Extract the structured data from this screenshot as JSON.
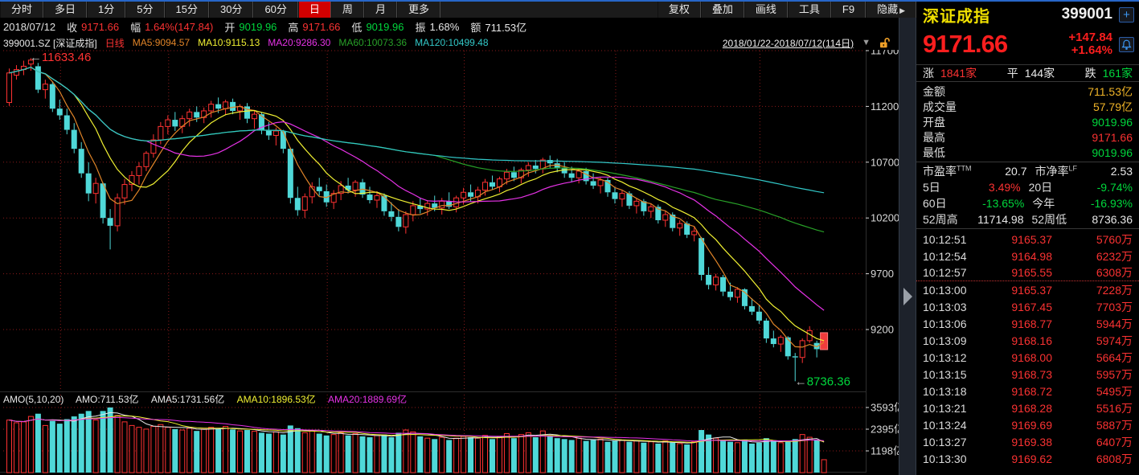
{
  "toolbar": {
    "tabs": [
      "分时",
      "多日",
      "1分",
      "5分",
      "15分",
      "30分",
      "60分",
      "日",
      "周",
      "月",
      "更多"
    ],
    "active_tab": "日",
    "tools": [
      "复权",
      "叠加",
      "画线",
      "工具",
      "F9",
      "隐藏"
    ],
    "hide_arrow": "▶"
  },
  "info_bar": {
    "date": "2018/07/12",
    "close_label": "收",
    "close": "9171.66",
    "chg_label": "幅",
    "chg": "1.64%(147.84)",
    "open_label": "开",
    "open": "9019.96",
    "high_label": "高",
    "high": "9171.66",
    "low_label": "低",
    "low": "9019.96",
    "amp_label": "振",
    "amplitude": "1.68%",
    "amount_label": "额",
    "amount": "711.53亿"
  },
  "legend": {
    "symbol": "399001.SZ [深证成指]",
    "period": "日线",
    "ma5": "MA5:9094.57",
    "ma10": "MA10:9115.13",
    "ma20": "MA20:9286.30",
    "ma60": "MA60:10073.36",
    "ma120": "MA120:10499.48",
    "range": "2018/01/22-2018/07/12(114日)",
    "caret": "▼"
  },
  "amo_legend": {
    "params": "AMO(5,10,20)",
    "amo": "AMO:711.53亿",
    "ama5": "AMA5:1731.56亿",
    "ama10": "AMA10:1896.53亿",
    "ama20": "AMA20:1889.69亿"
  },
  "chart_data": {
    "type": "candlestick+volume",
    "title": "深证成指 399001 日线 2018/01/22-2018/07/12(114日)",
    "y_ticks": [
      11700,
      11200,
      10700,
      10200,
      9700,
      9200
    ],
    "amo_ticks": [
      3593,
      2395,
      1198
    ],
    "amo_tick_suffix": "亿",
    "month_start_indices": [
      8,
      23,
      45,
      64,
      85,
      105
    ],
    "annotations": {
      "peak": "11633.46",
      "trough": "8736.36",
      "arrow": "←"
    },
    "colors": {
      "up": "#ff3232",
      "down": "#4fd8d8",
      "last": "#f03c3c",
      "grid": "#8b1a1a",
      "axis_text": "#d8d8d8",
      "ma5": "#e08428",
      "ma10": "#f0f032",
      "ma20": "#e632e6",
      "ma60": "#28a028",
      "ma120": "#32c8c8",
      "ama5": "#e8e8e8",
      "ama10": "#f0f032",
      "ama20": "#e632e6",
      "peak_text": "#ff3232",
      "trough_text": "#00d73c",
      "arrow_text": "#b4b4b4"
    },
    "candles": [
      [
        11235,
        11540,
        11205,
        11500
      ],
      [
        11480,
        11570,
        11440,
        11530
      ],
      [
        11530,
        11610,
        11480,
        11560
      ],
      [
        11580,
        11633.46,
        11520,
        11615
      ],
      [
        11560,
        11590,
        11320,
        11350
      ],
      [
        11350,
        11440,
        11270,
        11400
      ],
      [
        11400,
        11420,
        11150,
        11180
      ],
      [
        11180,
        11260,
        11080,
        11120
      ],
      [
        11120,
        11180,
        10950,
        10990
      ],
      [
        10990,
        11050,
        10780,
        10820
      ],
      [
        10820,
        10880,
        10560,
        10600
      ],
      [
        10600,
        10700,
        10350,
        10420
      ],
      [
        10420,
        10560,
        10330,
        10510
      ],
      [
        10510,
        10520,
        10150,
        10200
      ],
      [
        10200,
        10280,
        9918,
        10130
      ],
      [
        10130,
        10420,
        10080,
        10380
      ],
      [
        10380,
        10550,
        10320,
        10500
      ],
      [
        10500,
        10620,
        10440,
        10580
      ],
      [
        10580,
        10700,
        10500,
        10660
      ],
      [
        10660,
        10800,
        10620,
        10780
      ],
      [
        10780,
        10950,
        10740,
        10900
      ],
      [
        10900,
        11060,
        10860,
        11020
      ],
      [
        11020,
        11120,
        10950,
        11080
      ],
      [
        11080,
        11150,
        10980,
        11020
      ],
      [
        11020,
        11120,
        10960,
        11090
      ],
      [
        11090,
        11180,
        11020,
        11150
      ],
      [
        11150,
        11200,
        11060,
        11100
      ],
      [
        11100,
        11190,
        11050,
        11160
      ],
      [
        11160,
        11250,
        11100,
        11220
      ],
      [
        11220,
        11280,
        11140,
        11180
      ],
      [
        11180,
        11260,
        11120,
        11240
      ],
      [
        11240,
        11270,
        11130,
        11160
      ],
      [
        11160,
        11220,
        11080,
        11200
      ],
      [
        11200,
        11230,
        11050,
        11090
      ],
      [
        11090,
        11160,
        11000,
        11130
      ],
      [
        11130,
        11150,
        10950,
        10990
      ],
      [
        10990,
        11060,
        10900,
        10940
      ],
      [
        10940,
        11010,
        10850,
        10980
      ],
      [
        10980,
        10990,
        10780,
        10820
      ],
      [
        10820,
        10830,
        10330,
        10380
      ],
      [
        10380,
        10480,
        10220,
        10270
      ],
      [
        10270,
        10420,
        10200,
        10390
      ],
      [
        10390,
        10520,
        10330,
        10480
      ],
      [
        10480,
        10560,
        10400,
        10440
      ],
      [
        10440,
        10500,
        10300,
        10340
      ],
      [
        10340,
        10450,
        10280,
        10420
      ],
      [
        10420,
        10530,
        10360,
        10490
      ],
      [
        10490,
        10560,
        10420,
        10450
      ],
      [
        10450,
        10540,
        10390,
        10520
      ],
      [
        10520,
        10550,
        10380,
        10410
      ],
      [
        10410,
        10480,
        10330,
        10360
      ],
      [
        10360,
        10440,
        10290,
        10400
      ],
      [
        10400,
        10420,
        10220,
        10260
      ],
      [
        10260,
        10340,
        10170,
        10210
      ],
      [
        10210,
        10280,
        10080,
        10120
      ],
      [
        10120,
        10260,
        10060,
        10230
      ],
      [
        10230,
        10350,
        10170,
        10310
      ],
      [
        10310,
        10380,
        10240,
        10280
      ],
      [
        10280,
        10360,
        10220,
        10330
      ],
      [
        10330,
        10400,
        10260,
        10290
      ],
      [
        10290,
        10380,
        10230,
        10350
      ],
      [
        10350,
        10430,
        10280,
        10300
      ],
      [
        10300,
        10400,
        10250,
        10380
      ],
      [
        10380,
        10470,
        10320,
        10430
      ],
      [
        10430,
        10500,
        10350,
        10390
      ],
      [
        10390,
        10480,
        10330,
        10450
      ],
      [
        10450,
        10550,
        10400,
        10520
      ],
      [
        10520,
        10580,
        10450,
        10480
      ],
      [
        10480,
        10570,
        10430,
        10550
      ],
      [
        10550,
        10640,
        10500,
        10610
      ],
      [
        10610,
        10660,
        10530,
        10560
      ],
      [
        10560,
        10650,
        10510,
        10630
      ],
      [
        10630,
        10700,
        10570,
        10670
      ],
      [
        10670,
        10720,
        10600,
        10640
      ],
      [
        10640,
        10740,
        10600,
        10720
      ],
      [
        10720,
        10760,
        10650,
        10690
      ],
      [
        10690,
        10730,
        10610,
        10650
      ],
      [
        10650,
        10700,
        10560,
        10600
      ],
      [
        10600,
        10660,
        10520,
        10560
      ],
      [
        10560,
        10640,
        10510,
        10620
      ],
      [
        10620,
        10650,
        10500,
        10530
      ],
      [
        10530,
        10600,
        10460,
        10490
      ],
      [
        10490,
        10560,
        10420,
        10540
      ],
      [
        10540,
        10560,
        10390,
        10430
      ],
      [
        10430,
        10480,
        10330,
        10370
      ],
      [
        10370,
        10450,
        10300,
        10420
      ],
      [
        10420,
        10440,
        10280,
        10310
      ],
      [
        10310,
        10380,
        10240,
        10350
      ],
      [
        10350,
        10370,
        10220,
        10260
      ],
      [
        10260,
        10330,
        10200,
        10300
      ],
      [
        10300,
        10320,
        10150,
        10180
      ],
      [
        10180,
        10260,
        10120,
        10230
      ],
      [
        10230,
        10250,
        10080,
        10110
      ],
      [
        10110,
        10180,
        10040,
        10150
      ],
      [
        10150,
        10170,
        10020,
        10050
      ],
      [
        10050,
        10120,
        9990,
        10080
      ],
      [
        10020,
        10030,
        9640,
        9690
      ],
      [
        9690,
        9760,
        9560,
        9600
      ],
      [
        9600,
        9700,
        9550,
        9670
      ],
      [
        9670,
        9690,
        9500,
        9540
      ],
      [
        9540,
        9620,
        9460,
        9490
      ],
      [
        9490,
        9580,
        9440,
        9560
      ],
      [
        9560,
        9570,
        9380,
        9410
      ],
      [
        9410,
        9480,
        9330,
        9360
      ],
      [
        9360,
        9420,
        9250,
        9280
      ],
      [
        9280,
        9300,
        9080,
        9120
      ],
      [
        9120,
        9190,
        9040,
        9070
      ],
      [
        9070,
        9150,
        9000,
        9130
      ],
      [
        9130,
        9140,
        8930,
        8960
      ],
      [
        8960,
        8990,
        8736.36,
        8950
      ],
      [
        8950,
        9120,
        8900,
        9100
      ],
      [
        9100,
        9230,
        9080,
        9190
      ],
      [
        9080,
        9100,
        8950,
        9024
      ],
      [
        9019.96,
        9171.66,
        9019.96,
        9171.66
      ]
    ],
    "amounts": [
      2900,
      2750,
      2800,
      3100,
      3250,
      2600,
      2850,
      2700,
      2950,
      3100,
      3250,
      3400,
      2900,
      3400,
      3593,
      3150,
      2800,
      2600,
      2500,
      2400,
      2550,
      2650,
      2500,
      2400,
      2350,
      2450,
      2300,
      2400,
      2500,
      2420,
      2550,
      2380,
      2300,
      2350,
      2280,
      2200,
      2150,
      2250,
      2100,
      2600,
      2450,
      2200,
      2300,
      2150,
      2050,
      2100,
      2200,
      2050,
      2150,
      2000,
      1950,
      2050,
      2100,
      1950,
      2200,
      2350,
      2250,
      2000,
      1900,
      1850,
      1950,
      1800,
      1900,
      2000,
      1950,
      1900,
      2050,
      1850,
      2000,
      2150,
      1900,
      2100,
      2200,
      1950,
      2300,
      2050,
      1900,
      1850,
      1800,
      1900,
      1750,
      1800,
      1850,
      1700,
      1750,
      1800,
      1700,
      1750,
      1650,
      1700,
      1600,
      1750,
      1650,
      1600,
      1550,
      1700,
      2350,
      2100,
      1900,
      1750,
      1700,
      1650,
      1800,
      1600,
      1650,
      1900,
      1750,
      1650,
      1700,
      1850,
      2100,
      1950,
      1800,
      711.53
    ]
  },
  "quote_panel": {
    "name": "深证成指",
    "code": "399001",
    "price": "9171.66",
    "change": "+147.84",
    "change_pct": "+1.64%",
    "breadth": [
      {
        "label": "涨",
        "value": "1841家",
        "color": "c-red"
      },
      {
        "label": "平",
        "value": "144家",
        "color": "c-white"
      },
      {
        "label": "跌",
        "value": "161家",
        "color": "c-green"
      }
    ],
    "rows": [
      {
        "label": "金额",
        "value": "711.53亿",
        "color": "c-amber"
      },
      {
        "label": "成交量",
        "value": "57.79亿",
        "color": "c-amber"
      },
      {
        "label": "开盘",
        "value": "9019.96",
        "color": "c-green"
      },
      {
        "label": "最高",
        "value": "9171.66",
        "color": "c-red"
      },
      {
        "label": "最低",
        "value": "9019.96",
        "color": "c-green"
      }
    ],
    "grid": [
      {
        "label": "市盈率",
        "sup": "TTM",
        "value": "20.7",
        "color": "c-white"
      },
      {
        "label": "市净率",
        "sup": "LF",
        "value": "2.53",
        "color": "c-white"
      },
      {
        "label": "5日",
        "sup": "",
        "value": "3.49%",
        "color": "c-red"
      },
      {
        "label": "20日",
        "sup": "",
        "value": "-9.74%",
        "color": "c-green"
      },
      {
        "label": "60日",
        "sup": "",
        "value": "-13.65%",
        "color": "c-green"
      },
      {
        "label": "今年",
        "sup": "",
        "value": "-16.93%",
        "color": "c-green"
      },
      {
        "label": "52周高",
        "sup": "",
        "value": "11714.98",
        "color": "c-white"
      },
      {
        "label": "52周低",
        "sup": "",
        "value": "8736.36",
        "color": "c-white"
      }
    ],
    "ticks": [
      {
        "time": "10:12:51",
        "price": "9165.37",
        "vol": "5760万"
      },
      {
        "time": "10:12:54",
        "price": "9164.98",
        "vol": "6232万"
      },
      {
        "time": "10:12:57",
        "price": "9165.55",
        "vol": "6308万"
      },
      {
        "time": "10:13:00",
        "price": "9165.37",
        "vol": "7228万"
      },
      {
        "time": "10:13:03",
        "price": "9167.45",
        "vol": "7703万"
      },
      {
        "time": "10:13:06",
        "price": "9168.77",
        "vol": "5944万"
      },
      {
        "time": "10:13:09",
        "price": "9168.16",
        "vol": "5974万"
      },
      {
        "time": "10:13:12",
        "price": "9168.00",
        "vol": "5664万"
      },
      {
        "time": "10:13:15",
        "price": "9168.73",
        "vol": "5957万"
      },
      {
        "time": "10:13:18",
        "price": "9168.72",
        "vol": "5495万"
      },
      {
        "time": "10:13:21",
        "price": "9168.28",
        "vol": "5516万"
      },
      {
        "time": "10:13:24",
        "price": "9169.69",
        "vol": "5887万"
      },
      {
        "time": "10:13:27",
        "price": "9169.38",
        "vol": "6407万"
      },
      {
        "time": "10:13:30",
        "price": "9169.62",
        "vol": "6808万"
      }
    ]
  }
}
